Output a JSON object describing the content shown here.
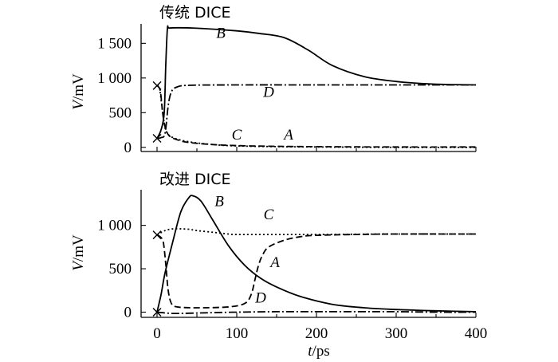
{
  "chart_data": [
    {
      "type": "line",
      "title": "传统 DICE",
      "ylabel_italic": "V",
      "ylabel_unit": "/mV",
      "xlim": [
        -20,
        400
      ],
      "ylim": [
        -60,
        1780
      ],
      "yticks": [
        0,
        500,
        1000,
        1500
      ],
      "ytick_labels": [
        "0",
        "500",
        "1 000",
        "1 500"
      ],
      "series": [
        {
          "name": "B",
          "style": "solid",
          "x": [
            0,
            5,
            9,
            11,
            13,
            15,
            25,
            50,
            100,
            130,
            160,
            190,
            220,
            260,
            300,
            340,
            370,
            400
          ],
          "y": [
            130,
            250,
            500,
            1200,
            1710,
            1720,
            1725,
            1718,
            1680,
            1640,
            1580,
            1400,
            1180,
            1020,
            950,
            915,
            905,
            900
          ]
        },
        {
          "name": "D",
          "style": "dashdot",
          "x": [
            0,
            5,
            10,
            14,
            18,
            25,
            40,
            100,
            200,
            300,
            400
          ],
          "y": [
            130,
            140,
            200,
            600,
            800,
            870,
            895,
            900,
            900,
            900,
            900
          ]
        },
        {
          "name": "C",
          "style": "dotted",
          "x": [
            0,
            3,
            6,
            9,
            12,
            20,
            40,
            70,
            100,
            150,
            200,
            300,
            400
          ],
          "y": [
            890,
            860,
            600,
            350,
            220,
            140,
            80,
            40,
            20,
            10,
            5,
            0,
            0
          ]
        },
        {
          "name": "A",
          "style": "dashed",
          "x": [
            0,
            4,
            7,
            10,
            15,
            25,
            40,
            70,
            100,
            150,
            200,
            300,
            400
          ],
          "y": [
            890,
            820,
            500,
            300,
            170,
            110,
            70,
            40,
            25,
            15,
            10,
            5,
            5
          ]
        }
      ],
      "markers": [
        {
          "x": 0,
          "y": 890
        },
        {
          "x": 0,
          "y": 130
        }
      ],
      "curve_labels": [
        {
          "text": "B",
          "x": 80,
          "y": 1580
        },
        {
          "text": "D",
          "x": 140,
          "y": 730
        },
        {
          "text": "C",
          "x": 100,
          "y": 110
        },
        {
          "text": "A",
          "x": 165,
          "y": 110
        }
      ]
    },
    {
      "type": "line",
      "title": "改进 DICE",
      "ylabel_italic": "V",
      "ylabel_unit": "/mV",
      "xlim": [
        -20,
        400
      ],
      "ylim": [
        -60,
        1410
      ],
      "yticks": [
        0,
        500,
        1000
      ],
      "ytick_labels": [
        "0",
        "500",
        "1 000"
      ],
      "xticks": [
        0,
        100,
        200,
        300,
        400
      ],
      "xtick_labels": [
        "0",
        "100",
        "200",
        "300",
        "400"
      ],
      "xlabel_italic": "t",
      "xlabel_unit": "/ps",
      "series": [
        {
          "name": "B",
          "style": "solid",
          "x": [
            0,
            5,
            10,
            20,
            30,
            40,
            45,
            55,
            70,
            90,
            110,
            130,
            150,
            180,
            220,
            260,
            300,
            350,
            400
          ],
          "y": [
            0,
            200,
            450,
            820,
            1160,
            1320,
            1340,
            1280,
            1060,
            760,
            540,
            390,
            290,
            180,
            90,
            50,
            30,
            15,
            5
          ]
        },
        {
          "name": "C",
          "style": "dotted",
          "x": [
            0,
            10,
            20,
            30,
            40,
            50,
            70,
            90,
            100,
            150,
            200,
            300,
            400
          ],
          "y": [
            890,
            940,
            960,
            960,
            955,
            940,
            920,
            900,
            895,
            895,
            895,
            900,
            900
          ]
        },
        {
          "name": "A",
          "style": "dashed",
          "x": [
            0,
            5,
            8,
            11,
            14,
            18,
            25,
            50,
            90,
            110,
            118,
            123,
            127,
            132,
            140,
            160,
            180,
            200,
            250,
            300,
            400
          ],
          "y": [
            890,
            860,
            800,
            550,
            250,
            100,
            60,
            50,
            60,
            100,
            200,
            380,
            530,
            650,
            750,
            830,
            870,
            885,
            895,
            900,
            900
          ]
        },
        {
          "name": "D",
          "style": "dashdot",
          "x": [
            0,
            20,
            50,
            100,
            150,
            200,
            250,
            300,
            350,
            400
          ],
          "y": [
            0,
            -15,
            -10,
            0,
            5,
            5,
            5,
            5,
            0,
            0
          ]
        }
      ],
      "markers": [
        {
          "x": 0,
          "y": 890
        },
        {
          "x": 0,
          "y": 0
        }
      ],
      "curve_labels": [
        {
          "text": "B",
          "x": 78,
          "y": 1220
        },
        {
          "text": "C",
          "x": 140,
          "y": 1070
        },
        {
          "text": "A",
          "x": 148,
          "y": 520
        },
        {
          "text": "D",
          "x": 130,
          "y": 110
        }
      ]
    }
  ]
}
